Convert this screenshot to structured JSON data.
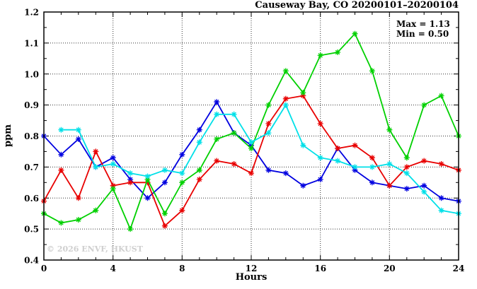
{
  "title": "Causeway Bay, CO 20200101–20200104",
  "annotation": {
    "max_label": "Max = 1.13",
    "min_label": "Min = 0.50"
  },
  "watermark": "© 2026 ENVF, HKUST",
  "chart_data": {
    "type": "line",
    "title": "Causeway Bay, CO 20200101–20200104",
    "xlabel": "Hours",
    "ylabel": "ppm",
    "xlim": [
      0,
      24
    ],
    "ylim": [
      0.4,
      1.2
    ],
    "grid": "dotted lines at major ticks, boxed axes with mirrored inward ticks",
    "legend": "none",
    "x_ticks": {
      "major": [
        0,
        4,
        8,
        12,
        16,
        20,
        24
      ],
      "labels": [
        "0",
        "4",
        "8",
        "12",
        "16",
        "20",
        "24"
      ],
      "minor_step": 1
    },
    "y_ticks": {
      "major": [
        0.4,
        0.5,
        0.6,
        0.7,
        0.8,
        0.9,
        1.0,
        1.1,
        1.2
      ],
      "labels": [
        "0.4",
        "0.5",
        "0.6",
        "0.7",
        "0.8",
        "0.9",
        "1.0",
        "1.1",
        "1.2"
      ],
      "minor_step": 0.05
    },
    "x_grid": [
      4,
      8,
      12,
      16,
      20
    ],
    "y_grid": [
      0.5,
      0.6,
      0.7,
      0.8,
      0.9,
      1.0,
      1.1
    ],
    "x": [
      0,
      1,
      2,
      3,
      4,
      5,
      6,
      7,
      8,
      9,
      10,
      11,
      12,
      13,
      14,
      15,
      16,
      17,
      18,
      19,
      20,
      21,
      22,
      23,
      24
    ],
    "series": [
      {
        "name": "series-blue",
        "color": "#0000e0",
        "values": [
          0.8,
          0.74,
          0.79,
          0.7,
          0.73,
          0.66,
          0.6,
          0.65,
          0.74,
          0.82,
          0.91,
          0.81,
          0.77,
          0.69,
          0.68,
          0.64,
          0.66,
          0.76,
          0.69,
          0.65,
          0.64,
          0.63,
          0.64,
          0.6,
          0.59
        ]
      },
      {
        "name": "series-red",
        "color": "#e80000",
        "values": [
          0.59,
          0.69,
          0.6,
          0.75,
          0.64,
          0.65,
          0.65,
          0.51,
          0.56,
          0.66,
          0.72,
          0.71,
          0.68,
          0.84,
          0.92,
          0.93,
          0.84,
          0.76,
          0.77,
          0.73,
          0.64,
          0.7,
          0.72,
          0.71,
          0.69
        ]
      },
      {
        "name": "series-green",
        "color": "#00d000",
        "values": [
          0.55,
          0.52,
          0.53,
          0.56,
          0.63,
          0.5,
          0.66,
          0.55,
          0.65,
          0.69,
          0.79,
          0.81,
          0.76,
          0.9,
          1.01,
          0.94,
          1.06,
          1.07,
          1.13,
          1.01,
          0.82,
          0.73,
          0.9,
          0.93,
          0.8
        ]
      },
      {
        "name": "series-cyan",
        "color": "#00e0e8",
        "values": [
          null,
          0.82,
          0.82,
          0.7,
          0.71,
          0.68,
          0.67,
          0.69,
          0.68,
          0.78,
          0.87,
          0.87,
          0.78,
          0.81,
          0.9,
          0.77,
          0.73,
          0.72,
          0.7,
          0.7,
          0.71,
          0.68,
          0.62,
          0.56,
          0.55
        ]
      }
    ],
    "stats": {
      "max": 1.13,
      "min": 0.5
    }
  }
}
